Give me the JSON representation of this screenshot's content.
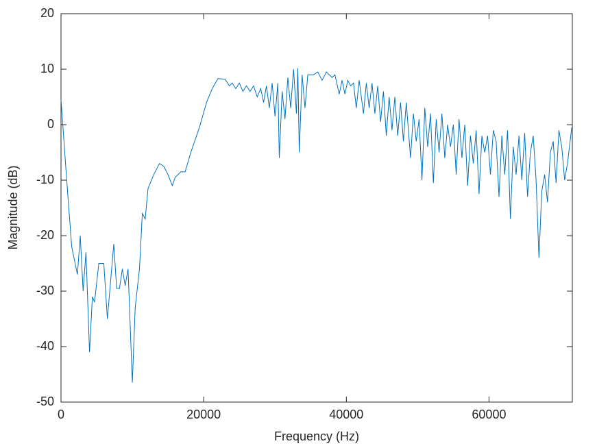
{
  "chart_data": {
    "type": "line",
    "xlabel": "Frequency (Hz)",
    "ylabel": "Magnitude (dB)",
    "xlim": [
      0,
      71680
    ],
    "ylim": [
      -50,
      20
    ],
    "xticks": [
      0,
      20000,
      40000,
      60000
    ],
    "yticks": [
      -50,
      -40,
      -30,
      -20,
      -10,
      0,
      10,
      20
    ],
    "grid": false,
    "series": [
      {
        "color": "#0072bd",
        "x": [
          0,
          800,
          1500,
          2300,
          2700,
          3100,
          3500,
          4000,
          4400,
          4700,
          5300,
          6000,
          6500,
          6900,
          7400,
          7800,
          8200,
          8600,
          9000,
          9400,
          10000,
          10400,
          11000,
          11400,
          11800,
          12200,
          13000,
          13800,
          14400,
          15000,
          15600,
          16000,
          16800,
          17400,
          18200,
          19400,
          20400,
          21200,
          22000,
          23000,
          23600,
          24000,
          24500,
          25000,
          25500,
          26000,
          26500,
          27000,
          27500,
          28000,
          28400,
          28800,
          29200,
          29600,
          30000,
          30400,
          30600,
          31000,
          31400,
          31800,
          32200,
          32600,
          33000,
          33200,
          33400,
          33800,
          34200,
          34600,
          35400,
          36000,
          36600,
          37200,
          38000,
          38400,
          39000,
          39400,
          39800,
          40200,
          40600,
          41000,
          41400,
          41800,
          42400,
          42800,
          43200,
          43600,
          44000,
          44400,
          44800,
          45200,
          45600,
          46000,
          46400,
          46800,
          47200,
          47600,
          48000,
          48400,
          49000,
          49400,
          49800,
          50200,
          50600,
          51000,
          51400,
          51800,
          52200,
          52600,
          53000,
          53400,
          53800,
          54200,
          54600,
          55000,
          55400,
          55800,
          56200,
          56600,
          57000,
          57400,
          57800,
          58200,
          58600,
          59000,
          59400,
          59800,
          60200,
          60600,
          61000,
          61400,
          61800,
          62200,
          62600,
          63000,
          63400,
          63800,
          64200,
          64600,
          65000,
          65400,
          65800,
          66200,
          66600,
          67000,
          67400,
          67800,
          68200,
          68600,
          69000,
          69400,
          69800,
          70200,
          70600,
          71000,
          71600
        ],
        "values": [
          4.5,
          -10,
          -22,
          -27,
          -20,
          -30,
          -23,
          -41,
          -31,
          -32,
          -25,
          -25,
          -35,
          -29,
          -21.5,
          -29.5,
          -29.5,
          -26,
          -29,
          -26,
          -46.5,
          -33,
          -26,
          -16,
          -17,
          -11.5,
          -9,
          -7,
          -7.5,
          -9,
          -11,
          -9.5,
          -8.5,
          -8.5,
          -5,
          -0.5,
          4,
          6.5,
          8.3,
          8.2,
          7,
          7.5,
          6.5,
          7.5,
          6,
          7,
          6,
          7,
          5,
          6.5,
          4,
          7,
          3,
          7.5,
          1.5,
          7.5,
          -6,
          6,
          1,
          8.5,
          3,
          10,
          2,
          10.2,
          -5,
          9,
          3,
          9,
          9,
          9.5,
          8,
          9.5,
          8.5,
          9,
          5.5,
          8,
          5.5,
          8,
          7,
          7.5,
          3,
          8,
          2,
          7.5,
          3,
          7.5,
          2,
          7,
          0.5,
          6,
          -2,
          5,
          -1,
          5,
          -2,
          4,
          -3,
          4,
          -6,
          2,
          -3,
          1,
          -10,
          3,
          -4,
          2,
          -10.5,
          1,
          -5,
          2,
          -6,
          0,
          -4,
          0,
          -9,
          1,
          -6,
          0,
          -11,
          -2,
          -7,
          -1,
          -12.5,
          -2,
          -5,
          -2,
          -9,
          -1,
          -3,
          -13,
          -2,
          -9,
          -1,
          -17,
          -4,
          -9,
          -2,
          -10,
          -1.5,
          -13,
          -5,
          -2,
          -10,
          -24,
          -12,
          -9,
          -14,
          -5,
          -3,
          -10.5,
          -1,
          -4,
          -10,
          -7,
          -0.5
        ]
      }
    ]
  }
}
